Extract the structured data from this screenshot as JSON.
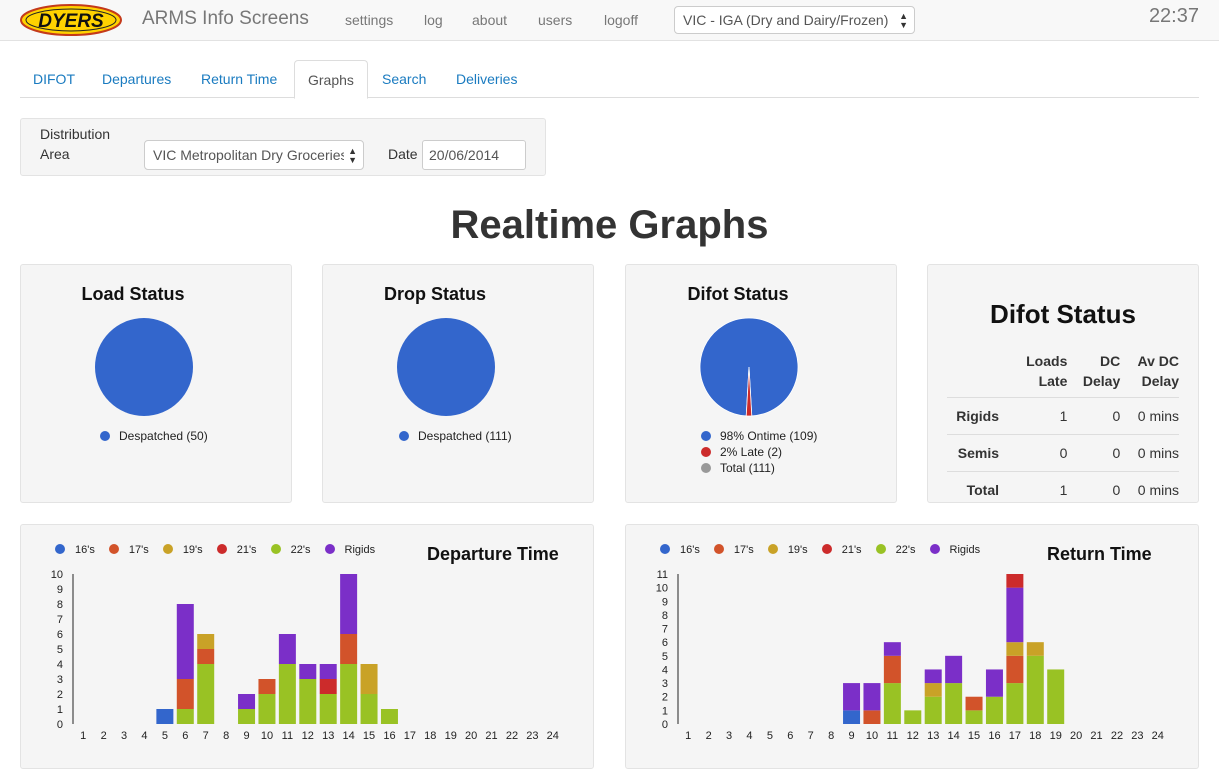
{
  "navbar": {
    "logo_text": "DYERS",
    "brand": "ARMS Info Screens",
    "links": [
      "settings",
      "log",
      "about",
      "users",
      "logoff"
    ],
    "site_select": "VIC - IGA (Dry and Dairy/Frozen)",
    "clock": "22:37"
  },
  "tabs": [
    "DIFOT",
    "Departures",
    "Return Time",
    "Graphs",
    "Search",
    "Deliveries"
  ],
  "active_tab": "Graphs",
  "filter": {
    "area_label_1": "Distribution",
    "area_label_2": "Area",
    "area_value": "VIC Metropolitan Dry Groceries",
    "date_label": "Date",
    "date_value": "20/06/2014"
  },
  "page_title": "Realtime Graphs",
  "colors": {
    "blue": "#3366cc",
    "orange": "#d2532a",
    "gold": "#c9a227",
    "red": "#cc2b2b",
    "green": "#99c224",
    "purple": "#7b2fc8",
    "grey": "#999999",
    "link": "#1a7bc0"
  },
  "load_status": {
    "title": "Load Status",
    "legend": [
      {
        "label": "Despatched (50)",
        "color": "#3366cc"
      }
    ]
  },
  "drop_status": {
    "title": "Drop Status",
    "legend": [
      {
        "label": "Despatched (111)",
        "color": "#3366cc"
      }
    ]
  },
  "difot_status_pie": {
    "title": "Difot Status",
    "legend": [
      {
        "label": "98% Ontime (109)",
        "color": "#3366cc"
      },
      {
        "label": "2% Late (2)",
        "color": "#cc2b2b"
      },
      {
        "label": "Total (111)",
        "color": "#999999"
      }
    ]
  },
  "difot_table": {
    "title": "Difot Status",
    "headers": [
      [
        "",
        ""
      ],
      [
        "Loads",
        "Late"
      ],
      [
        "DC",
        "Delay"
      ],
      [
        "Av DC",
        "Delay"
      ]
    ],
    "rows": [
      {
        "name": "Rigids",
        "loads_late": "1",
        "dc_delay": "0",
        "av_dc_delay": "0 mins"
      },
      {
        "name": "Semis",
        "loads_late": "0",
        "dc_delay": "0",
        "av_dc_delay": "0 mins"
      },
      {
        "name": "Total",
        "loads_late": "1",
        "dc_delay": "0",
        "av_dc_delay": "0 mins"
      }
    ]
  },
  "chart_data": [
    {
      "type": "pie",
      "title": "Load Status",
      "slices": [
        {
          "label": "Despatched",
          "value": 50,
          "color": "#3366cc"
        }
      ]
    },
    {
      "type": "pie",
      "title": "Drop Status",
      "slices": [
        {
          "label": "Despatched",
          "value": 111,
          "color": "#3366cc"
        }
      ]
    },
    {
      "type": "pie",
      "title": "Difot Status",
      "slices": [
        {
          "label": "Ontime",
          "value": 109,
          "color": "#3366cc"
        },
        {
          "label": "Late",
          "value": 2,
          "color": "#cc2b2b"
        }
      ]
    },
    {
      "type": "bar",
      "stacked": true,
      "title": "Departure Time",
      "categories": [
        "1",
        "2",
        "3",
        "4",
        "5",
        "6",
        "7",
        "8",
        "9",
        "10",
        "11",
        "12",
        "13",
        "14",
        "15",
        "16",
        "17",
        "18",
        "19",
        "20",
        "21",
        "22",
        "23",
        "24"
      ],
      "ylim": [
        0,
        10
      ],
      "yticks": [
        0,
        1,
        2,
        3,
        4,
        5,
        6,
        7,
        8,
        9,
        10
      ],
      "legend_position": "top-left",
      "series": [
        {
          "name": "16's",
          "color": "#3366cc",
          "values": [
            0,
            0,
            0,
            0,
            1,
            0,
            0,
            0,
            0,
            0,
            0,
            0,
            0,
            0,
            0,
            0,
            0,
            0,
            0,
            0,
            0,
            0,
            0,
            0
          ]
        },
        {
          "name": "22's",
          "color": "#99c224",
          "values": [
            0,
            0,
            0,
            0,
            0,
            1,
            4,
            0,
            1,
            2,
            4,
            3,
            2,
            4,
            2,
            1,
            0,
            0,
            0,
            0,
            0,
            0,
            0,
            0
          ]
        },
        {
          "name": "17's",
          "color": "#d2532a",
          "values": [
            0,
            0,
            0,
            0,
            0,
            2,
            1,
            0,
            0,
            1,
            0,
            0,
            0,
            2,
            0,
            0,
            0,
            0,
            0,
            0,
            0,
            0,
            0,
            0
          ]
        },
        {
          "name": "19's",
          "color": "#c9a227",
          "values": [
            0,
            0,
            0,
            0,
            0,
            0,
            1,
            0,
            0,
            0,
            0,
            0,
            0,
            0,
            2,
            0,
            0,
            0,
            0,
            0,
            0,
            0,
            0,
            0
          ]
        },
        {
          "name": "21's",
          "color": "#cc2b2b",
          "values": [
            0,
            0,
            0,
            0,
            0,
            0,
            0,
            0,
            0,
            0,
            0,
            0,
            1,
            0,
            0,
            0,
            0,
            0,
            0,
            0,
            0,
            0,
            0,
            0
          ]
        },
        {
          "name": "Rigids",
          "color": "#7b2fc8",
          "values": [
            0,
            0,
            0,
            0,
            0,
            5,
            0,
            0,
            1,
            0,
            2,
            1,
            1,
            4,
            0,
            0,
            0,
            0,
            0,
            0,
            0,
            0,
            0,
            0
          ]
        }
      ]
    },
    {
      "type": "bar",
      "stacked": true,
      "title": "Return Time",
      "categories": [
        "1",
        "2",
        "3",
        "4",
        "5",
        "6",
        "7",
        "8",
        "9",
        "10",
        "11",
        "12",
        "13",
        "14",
        "15",
        "16",
        "17",
        "18",
        "19",
        "20",
        "21",
        "22",
        "23",
        "24"
      ],
      "ylim": [
        0,
        11
      ],
      "yticks": [
        0,
        1,
        2,
        3,
        4,
        5,
        6,
        7,
        8,
        9,
        10,
        11
      ],
      "legend_position": "top-left",
      "series": [
        {
          "name": "16's",
          "color": "#3366cc",
          "values": [
            0,
            0,
            0,
            0,
            0,
            0,
            0,
            0,
            1,
            0,
            0,
            0,
            0,
            0,
            0,
            0,
            0,
            0,
            0,
            0,
            0,
            0,
            0,
            0
          ]
        },
        {
          "name": "22's",
          "color": "#99c224",
          "values": [
            0,
            0,
            0,
            0,
            0,
            0,
            0,
            0,
            0,
            0,
            3,
            1,
            2,
            3,
            1,
            2,
            3,
            5,
            4,
            0,
            0,
            0,
            0,
            0
          ]
        },
        {
          "name": "17's",
          "color": "#d2532a",
          "values": [
            0,
            0,
            0,
            0,
            0,
            0,
            0,
            0,
            0,
            1,
            2,
            0,
            0,
            0,
            1,
            0,
            2,
            0,
            0,
            0,
            0,
            0,
            0,
            0
          ]
        },
        {
          "name": "19's",
          "color": "#c9a227",
          "values": [
            0,
            0,
            0,
            0,
            0,
            0,
            0,
            0,
            0,
            0,
            0,
            0,
            1,
            0,
            0,
            0,
            1,
            1,
            0,
            0,
            0,
            0,
            0,
            0
          ]
        },
        {
          "name": "Rigids",
          "color": "#7b2fc8",
          "values": [
            0,
            0,
            0,
            0,
            0,
            0,
            0,
            0,
            2,
            2,
            1,
            0,
            1,
            2,
            0,
            2,
            4,
            0,
            0,
            0,
            0,
            0,
            0,
            0
          ]
        },
        {
          "name": "21's",
          "color": "#cc2b2b",
          "values": [
            0,
            0,
            0,
            0,
            0,
            0,
            0,
            0,
            0,
            0,
            0,
            0,
            0,
            0,
            0,
            0,
            1,
            0,
            0,
            0,
            0,
            0,
            0,
            0
          ]
        }
      ]
    }
  ],
  "bar_legend": [
    {
      "name": "16's",
      "color": "#3366cc"
    },
    {
      "name": "17's",
      "color": "#d2532a"
    },
    {
      "name": "19's",
      "color": "#c9a227"
    },
    {
      "name": "21's",
      "color": "#cc2b2b"
    },
    {
      "name": "22's",
      "color": "#99c224"
    },
    {
      "name": "Rigids",
      "color": "#7b2fc8"
    }
  ]
}
